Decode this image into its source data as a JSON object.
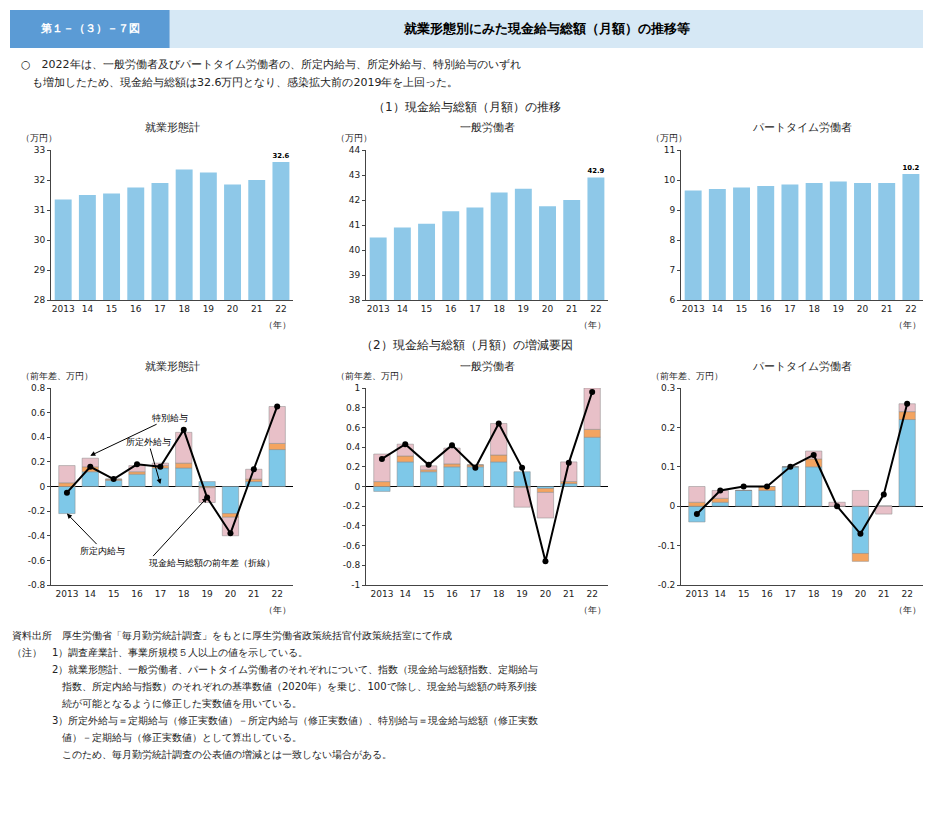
{
  "subtitle": "第１－（３）－７図",
  "title": "就業形態別にみた現金給与総額（月額）の推移等",
  "text": [
    "○　2022年は、一般労働者及びパートタイム労働者の、所定内給与、所定外給与、特別給与のいずれ",
    "　も増加したため、現金給与総額は32.6万円となり、感染拡大前の2019年を上回った。"
  ],
  "section_titles": [
    "（1）現金給与総額（月額）の推移",
    "（2）現金給与総額（月額）の増減要因"
  ],
  "notes": [
    "資料出所　厚生労働省「毎月勤労統計調査」をもとに厚生労働省政策統括官付政策統括室にて作成",
    "（注）　1）調査産業計、事業所規模５人以上の値を示している。",
    "　　　　2）就業形態計、一般労働者、パートタイム労働者のそれぞれについて、指数（現金給与総額指数、定期給与",
    "　　　　　指数、所定内給与指数）のそれぞれの基準数値（2020年）を乗じ、100で除し、現金給与総額の時系列接",
    "　　　　　続が可能となるように修正した実数値を用いている。",
    "　　　　3）所定外給与＝定期給与（修正実数値）－所定内給与（修正実数値）、特別給与＝現金給与総額（修正実数",
    "　　　　　値）－定期給与（修正実数値）として算出している。",
    "　　　　　このため、毎月勤労統計調査の公表値の増減とは一致しない場合がある。"
  ],
  "chart_data": [
    {
      "type": "bar",
      "title": "就業形態計",
      "ylabel": "（万円）",
      "xlabel": "（年）",
      "categories": [
        "2013",
        "14",
        "15",
        "16",
        "17",
        "18",
        "19",
        "20",
        "21",
        "22"
      ],
      "values": [
        31.35,
        31.5,
        31.55,
        31.75,
        31.9,
        32.35,
        32.25,
        31.85,
        32.0,
        32.6
      ],
      "value_labels": [
        null,
        null,
        null,
        null,
        null,
        null,
        null,
        null,
        null,
        "32.6"
      ],
      "data_labels": true,
      "color": "#8EC8E8",
      "ylim": [
        28,
        33
      ],
      "yticks": [
        28,
        29,
        30,
        31,
        32,
        33
      ],
      "grid": false
    },
    {
      "type": "bar",
      "title": "一般労働者",
      "ylabel": "（万円）",
      "xlabel": "（年）",
      "categories": [
        "2013",
        "14",
        "15",
        "16",
        "17",
        "18",
        "19",
        "20",
        "21",
        "22"
      ],
      "values": [
        40.5,
        40.9,
        41.05,
        41.55,
        41.7,
        42.3,
        42.45,
        41.75,
        42.0,
        42.9
      ],
      "value_labels": [
        null,
        null,
        null,
        null,
        null,
        null,
        null,
        null,
        null,
        "42.9"
      ],
      "data_labels": true,
      "color": "#8EC8E8",
      "ylim": [
        38,
        44
      ],
      "yticks": [
        38,
        39,
        40,
        41,
        42,
        43,
        44
      ],
      "grid": false
    },
    {
      "type": "bar",
      "title": "パートタイム労働者",
      "ylabel": "（万円）",
      "xlabel": "（年）",
      "categories": [
        "2013",
        "14",
        "15",
        "16",
        "17",
        "18",
        "19",
        "20",
        "21",
        "22"
      ],
      "values": [
        9.65,
        9.7,
        9.75,
        9.8,
        9.85,
        9.9,
        9.95,
        9.9,
        9.9,
        10.2
      ],
      "value_labels": [
        null,
        null,
        null,
        null,
        null,
        null,
        null,
        null,
        null,
        "10.2"
      ],
      "data_labels": true,
      "color": "#8EC8E8",
      "ylim": [
        6,
        11
      ],
      "yticks": [
        6,
        7,
        8,
        9,
        10,
        11
      ],
      "grid": false
    },
    {
      "type": "bar",
      "stacked": true,
      "title": "就業形態計",
      "ylabel": "（前年差、万円）",
      "xlabel": "（年）",
      "categories": [
        "2013",
        "14",
        "15",
        "16",
        "17",
        "18",
        "19",
        "20",
        "21",
        "22"
      ],
      "series": [
        {
          "name": "所定内給与",
          "type": "bar",
          "color": "#7EC8E8",
          "values": [
            -0.22,
            0.12,
            0.05,
            0.1,
            0.15,
            0.15,
            0.04,
            -0.22,
            0.04,
            0.3
          ]
        },
        {
          "name": "所定外給与",
          "type": "bar",
          "color": "#F4A460",
          "values": [
            0.03,
            0.04,
            0.01,
            0.02,
            0.02,
            0.04,
            -0.01,
            -0.03,
            0.02,
            0.05
          ]
        },
        {
          "name": "特別給与",
          "type": "bar",
          "color": "#E8C0C8",
          "values": [
            0.14,
            0.07,
            0.0,
            0.05,
            0.02,
            0.25,
            -0.12,
            -0.15,
            0.08,
            0.3
          ]
        },
        {
          "name": "現金給与総額の前年差（折線）",
          "type": "line",
          "color": "#000000",
          "marker": "circle",
          "values": [
            -0.05,
            0.16,
            0.06,
            0.18,
            0.16,
            0.46,
            -0.09,
            -0.38,
            0.14,
            0.65
          ]
        }
      ],
      "annotations": [
        {
          "text": "特別給与",
          "x": "14",
          "y": 0.25
        },
        {
          "text": "所定外給与",
          "x": "17",
          "y": 0.02
        },
        {
          "text": "所定内給与",
          "x": "2013",
          "y": -0.22
        },
        {
          "text": "現金給与総額の前年差（折線）",
          "x": "19",
          "y": -0.09
        }
      ],
      "ylim": [
        -0.8,
        0.8
      ],
      "yticks": [
        -0.8,
        -0.6,
        -0.4,
        -0.2,
        0,
        0.2,
        0.4,
        0.6,
        0.8
      ],
      "grid": false
    },
    {
      "type": "bar",
      "stacked": true,
      "title": "一般労働者",
      "ylabel": "（前年差、万円）",
      "xlabel": "（年）",
      "categories": [
        "2013",
        "14",
        "15",
        "16",
        "17",
        "18",
        "19",
        "20",
        "21",
        "22"
      ],
      "series": [
        {
          "name": "所定内給与",
          "type": "bar",
          "color": "#7EC8E8",
          "values": [
            -0.05,
            0.25,
            0.15,
            0.2,
            0.2,
            0.25,
            0.15,
            -0.02,
            0.03,
            0.5
          ]
        },
        {
          "name": "所定外給与",
          "type": "bar",
          "color": "#F4A460",
          "values": [
            0.05,
            0.06,
            0.02,
            0.03,
            0.02,
            0.07,
            -0.01,
            -0.04,
            0.02,
            0.08
          ]
        },
        {
          "name": "特別給与",
          "type": "bar",
          "color": "#E8C0C8",
          "values": [
            0.28,
            0.12,
            0.04,
            0.16,
            0.0,
            0.32,
            -0.2,
            -0.26,
            0.2,
            0.42
          ]
        },
        {
          "name": "現金給与総額の前年差（折線）",
          "type": "line",
          "color": "#000000",
          "marker": "circle",
          "values": [
            0.28,
            0.43,
            0.22,
            0.42,
            0.19,
            0.64,
            0.19,
            -0.76,
            0.24,
            0.96
          ]
        }
      ],
      "ylim": [
        -1.0,
        1.0
      ],
      "yticks": [
        -1,
        -0.8,
        -0.6,
        -0.4,
        -0.2,
        0,
        0.2,
        0.4,
        0.6,
        0.8,
        1
      ],
      "grid": false
    },
    {
      "type": "bar",
      "stacked": true,
      "title": "パートタイム労働者",
      "ylabel": "（前年差、万円）",
      "xlabel": "（年）",
      "categories": [
        "2013",
        "14",
        "15",
        "16",
        "17",
        "18",
        "19",
        "20",
        "21",
        "22"
      ],
      "series": [
        {
          "name": "所定内給与",
          "type": "bar",
          "color": "#7EC8E8",
          "values": [
            -0.04,
            0.01,
            0.04,
            0.04,
            0.1,
            0.1,
            0.0,
            -0.12,
            0.0,
            0.22
          ]
        },
        {
          "name": "所定外給与",
          "type": "bar",
          "color": "#F4A460",
          "values": [
            0.01,
            0.01,
            0.0,
            0.01,
            0.0,
            0.02,
            0.0,
            -0.02,
            0.0,
            0.02
          ]
        },
        {
          "name": "特別給与",
          "type": "bar",
          "color": "#E8C0C8",
          "values": [
            0.04,
            0.02,
            0.0,
            0.0,
            0.0,
            0.02,
            0.01,
            0.04,
            -0.02,
            0.02
          ]
        },
        {
          "name": "現金給与総額の前年差（折線）",
          "type": "line",
          "color": "#000000",
          "marker": "circle",
          "values": [
            -0.02,
            0.04,
            0.05,
            0.05,
            0.1,
            0.13,
            0.0,
            -0.07,
            0.03,
            0.26
          ]
        }
      ],
      "ylim": [
        -0.2,
        0.3
      ],
      "yticks": [
        -0.2,
        -0.1,
        0,
        0.1,
        0.2,
        0.3
      ],
      "grid": false
    }
  ]
}
